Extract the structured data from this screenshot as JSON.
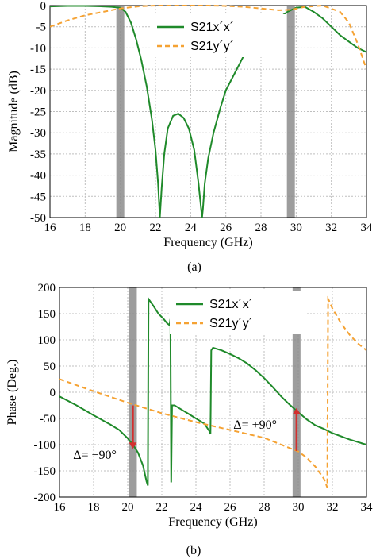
{
  "figure": {
    "panel_a_caption": "(a)",
    "panel_b_caption": "(b)"
  },
  "colors": {
    "s21xx": "#1f8a2a",
    "s21yy": "#f5a233",
    "band": "#8c8c8c",
    "grid": "#bfbfbf",
    "arrow": "#d32f2f"
  },
  "chart_data": [
    {
      "type": "line",
      "xlabel": "Frequency (GHz)",
      "ylabel": "Magnitude (dB)",
      "xlim": [
        16,
        34
      ],
      "ylim": [
        -50,
        0
      ],
      "xticks": [
        16,
        18,
        20,
        22,
        24,
        26,
        28,
        30,
        32,
        34
      ],
      "yticks": [
        0,
        -5,
        -10,
        -15,
        -20,
        -25,
        -30,
        -35,
        -40,
        -45,
        -50
      ],
      "grid": true,
      "legend_position": "top-right",
      "highlight_bands": [
        20,
        29.7
      ],
      "series": [
        {
          "name": "S21x´x´",
          "style": "solid",
          "x": [
            16,
            17,
            18,
            19,
            19.5,
            20,
            20.3,
            20.6,
            20.9,
            21.2,
            21.5,
            21.8,
            22.0,
            22.15,
            22.25,
            22.35,
            22.5,
            22.7,
            23.0,
            23.3,
            23.6,
            23.9,
            24.2,
            24.45,
            24.6,
            24.65,
            24.7,
            24.8,
            25.0,
            25.3,
            25.7,
            26.0,
            26.5,
            27,
            27.5,
            28,
            28.5,
            29,
            29.5,
            30,
            30.5,
            31,
            31.5,
            32,
            32.5,
            33,
            33.5,
            34
          ],
          "y": [
            -0.2,
            -0.1,
            -0.1,
            -0.2,
            -0.3,
            -0.5,
            -1.5,
            -4,
            -8,
            -13,
            -19,
            -27,
            -34,
            -42,
            -50,
            -43,
            -35,
            -29,
            -26,
            -25.5,
            -26.5,
            -29,
            -34,
            -42,
            -48,
            -50,
            -48,
            -42,
            -36,
            -30,
            -24,
            -20,
            -16,
            -12,
            -9,
            -6.5,
            -4.5,
            -3,
            -1.5,
            -0.5,
            -0.3,
            -1.5,
            -3,
            -5,
            -7,
            -8.5,
            -10,
            -11
          ]
        },
        {
          "name": "S21y´y´",
          "style": "dashed",
          "x": [
            16,
            17,
            18,
            19,
            20,
            21,
            22,
            23,
            24,
            25,
            26,
            27,
            28,
            29,
            29.7,
            30.5,
            31.5,
            32.5,
            33,
            33.5,
            34
          ],
          "y": [
            -5,
            -3.5,
            -2.3,
            -1.5,
            -0.7,
            -0.2,
            0,
            0,
            0,
            0,
            -0.1,
            -0.3,
            -0.7,
            -1.1,
            -1.0,
            -0.3,
            0,
            -1.5,
            -4,
            -9,
            -15
          ]
        }
      ]
    },
    {
      "type": "line",
      "xlabel": "Frequency (GHz)",
      "ylabel": "Phase (Deg.)",
      "xlim": [
        16,
        34
      ],
      "ylim": [
        -200,
        200
      ],
      "xticks": [
        16,
        18,
        20,
        22,
        24,
        26,
        28,
        30,
        32,
        34
      ],
      "yticks": [
        200,
        150,
        100,
        50,
        0,
        -50,
        -100,
        -150,
        -200
      ],
      "grid": true,
      "legend_position": "top-right",
      "highlight_bands": [
        20.3,
        29.9
      ],
      "annotations": [
        {
          "text": "Δ= −90°",
          "x": 16.8,
          "y": -127
        },
        {
          "text": "Δ= +90°",
          "x": 26.2,
          "y": -70
        }
      ],
      "arrows": [
        {
          "x": 20.3,
          "y_from": -25,
          "y_to": -108
        },
        {
          "x": 29.9,
          "y_from": -112,
          "y_to": -30
        }
      ],
      "series": [
        {
          "name": "S21x´x´",
          "style": "solid",
          "x": [
            16,
            17,
            18,
            19,
            19.5,
            20,
            20.3,
            20.6,
            20.9,
            21.1,
            21.18,
            21.22,
            21.5,
            21.8,
            22.1,
            22.3,
            22.45,
            22.5,
            22.55,
            22.6,
            22.75,
            23,
            23.5,
            24,
            24.5,
            24.8,
            24.85,
            24.9,
            25,
            25.5,
            26,
            26.5,
            27,
            27.5,
            28,
            28.5,
            29,
            29.5,
            30,
            30.5,
            31,
            31.5,
            32,
            33,
            34
          ],
          "y": [
            -8,
            -25,
            -44,
            -62,
            -72,
            -88,
            -100,
            -115,
            -140,
            -170,
            -178,
            178,
            165,
            150,
            140,
            132,
            128,
            140,
            -172,
            -25,
            -25,
            -30,
            -40,
            -50,
            -60,
            -75,
            -80,
            80,
            85,
            80,
            73,
            65,
            55,
            42,
            27,
            10,
            -8,
            -24,
            -38,
            -52,
            -63,
            -70,
            -78,
            -90,
            -100
          ]
        },
        {
          "name": "S21y´y´",
          "style": "dashed",
          "x": [
            16,
            18,
            20,
            22,
            24,
            26,
            28,
            29,
            30,
            30.5,
            31,
            31.5,
            31.7,
            31.75,
            31.8,
            32,
            32.5,
            33,
            33.5,
            34
          ],
          "y": [
            25,
            2,
            -20,
            -40,
            -57,
            -72,
            -87,
            -100,
            -113,
            -125,
            -142,
            -165,
            -182,
            178,
            175,
            160,
            132,
            110,
            93,
            80
          ]
        }
      ]
    }
  ]
}
